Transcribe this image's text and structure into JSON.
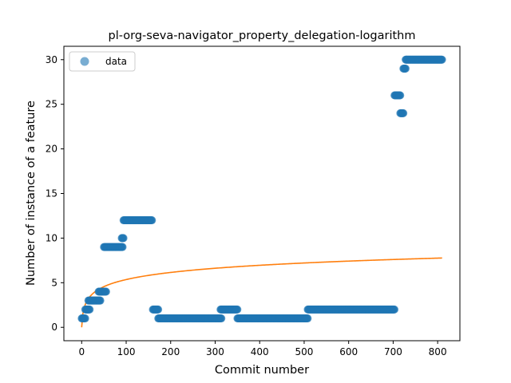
{
  "chart_data": {
    "type": "scatter",
    "title": "pl-org-seva-navigator_property_delegation-logarithm",
    "xlabel": "Commit number",
    "ylabel": "Number of instance of a feature",
    "xlim": [
      -40,
      850
    ],
    "ylim": [
      -1.5,
      31.5
    ],
    "xticks": [
      0,
      100,
      200,
      300,
      400,
      500,
      600,
      700,
      800
    ],
    "yticks": [
      0,
      5,
      10,
      15,
      20,
      25,
      30
    ],
    "grid": false,
    "legend": {
      "placement": "top-left",
      "entries": [
        "data"
      ]
    },
    "colors": {
      "scatter": "#1f77b4",
      "fit": "#ff7f0e"
    },
    "scatter_segments": [
      {
        "x_start": 0,
        "x_end": 8,
        "y": 1
      },
      {
        "x_start": 8,
        "x_end": 18,
        "y": 2
      },
      {
        "x_start": 15,
        "x_end": 42,
        "y": 3
      },
      {
        "x_start": 38,
        "x_end": 55,
        "y": 4
      },
      {
        "x_start": 50,
        "x_end": 92,
        "y": 9
      },
      {
        "x_start": 90,
        "x_end": 94,
        "y": 10
      },
      {
        "x_start": 94,
        "x_end": 158,
        "y": 12
      },
      {
        "x_start": 160,
        "x_end": 172,
        "y": 2
      },
      {
        "x_start": 172,
        "x_end": 314,
        "y": 1
      },
      {
        "x_start": 312,
        "x_end": 350,
        "y": 2
      },
      {
        "x_start": 350,
        "x_end": 508,
        "y": 1
      },
      {
        "x_start": 508,
        "x_end": 703,
        "y": 2
      },
      {
        "x_start": 703,
        "x_end": 716,
        "y": 26
      },
      {
        "x_start": 716,
        "x_end": 723,
        "y": 24
      },
      {
        "x_start": 723,
        "x_end": 728,
        "y": 29
      },
      {
        "x_start": 728,
        "x_end": 810,
        "y": 30
      }
    ],
    "fit": {
      "model": "logarithm",
      "a": 0,
      "b": 1.16,
      "x_range": [
        0,
        810
      ]
    }
  }
}
